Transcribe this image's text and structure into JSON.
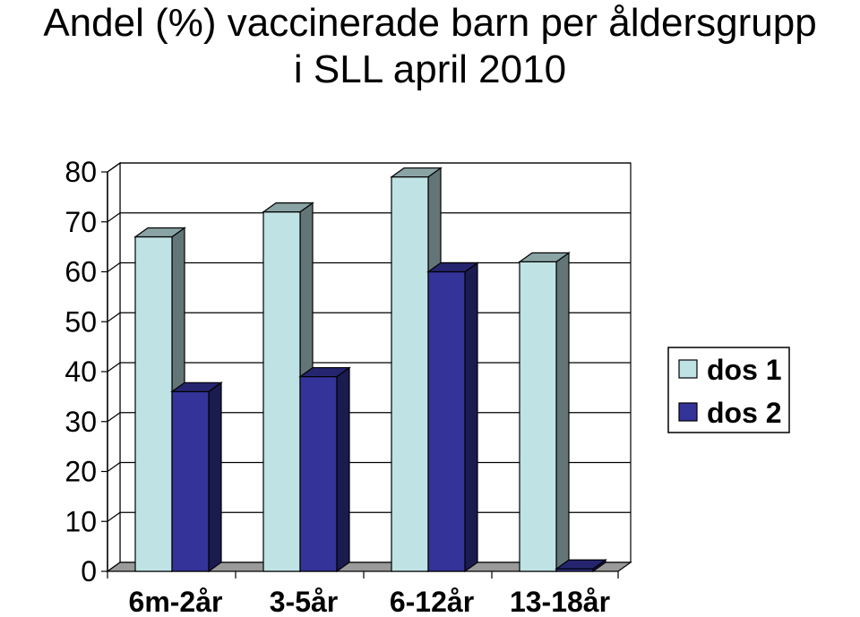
{
  "chart_data": {
    "type": "bar",
    "title_line1": "Andel (%) vaccinerade barn per åldersgrupp",
    "title_line2": "i SLL april 2010",
    "categories": [
      "6m-2år",
      "3-5år",
      "6-12år",
      "13-18år"
    ],
    "series": [
      {
        "name": "dos 1",
        "values": [
          67,
          72,
          79,
          62
        ],
        "color": "#bfe3e4"
      },
      {
        "name": "dos 2",
        "values": [
          36,
          39,
          60,
          0.5
        ],
        "color": "#33339a"
      }
    ],
    "ylim": [
      0,
      80
    ],
    "yticks": [
      0,
      10,
      20,
      30,
      40,
      50,
      60,
      70,
      80
    ],
    "grid": true,
    "legend_position": "right",
    "style": "3d-clustered-column"
  }
}
